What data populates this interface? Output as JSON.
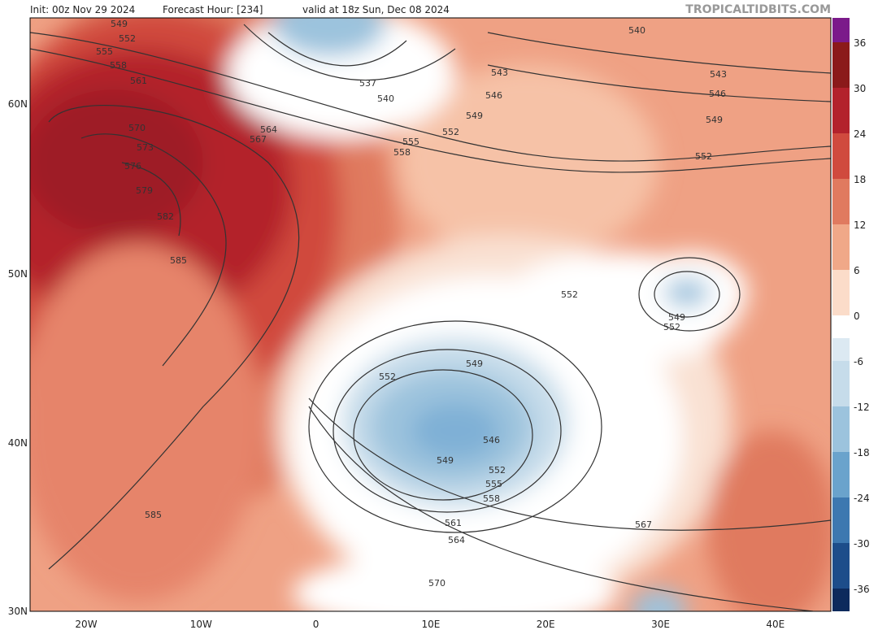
{
  "header": {
    "init": "Init: 00z Nov 29 2024",
    "forecast_hour": "Forecast Hour: [234]",
    "valid": "valid at 18z Sun, Dec 08 2024",
    "watermark": "TROPICALTIDBITS.COM"
  },
  "latitude_labels": [
    "60N",
    "50N",
    "40N",
    "30N"
  ],
  "longitude_labels": [
    "20W",
    "10W",
    "0",
    "10E",
    "20E",
    "30E",
    "40E"
  ],
  "colorbar": {
    "ticks": [
      36,
      30,
      24,
      18,
      12,
      6,
      0,
      -6,
      -12,
      -18,
      -24,
      -30,
      -36
    ]
  },
  "contour_labels": [
    "549",
    "552",
    "555",
    "558",
    "561",
    "570",
    "573",
    "576",
    "579",
    "582",
    "585",
    "585",
    "564",
    "567",
    "537",
    "540",
    "555",
    "558",
    "543",
    "546",
    "549",
    "552",
    "540",
    "543",
    "546",
    "549",
    "552",
    "552",
    "549",
    "552",
    "552",
    "549",
    "546",
    "549",
    "552",
    "555",
    "558",
    "561",
    "564",
    "567",
    "570"
  ]
}
